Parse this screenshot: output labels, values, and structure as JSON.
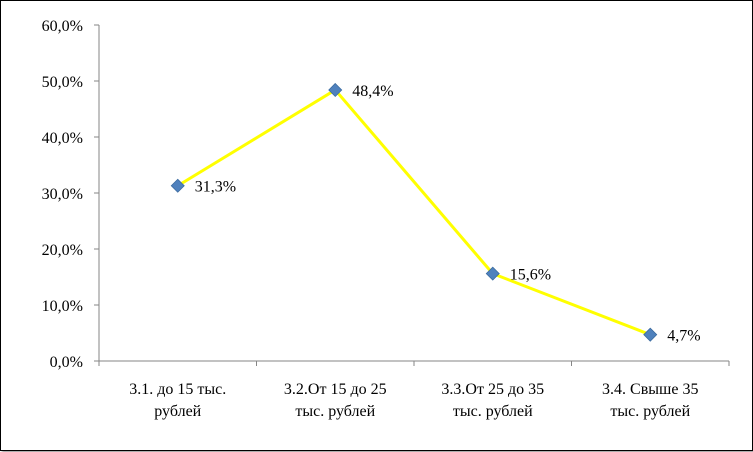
{
  "chart_data": {
    "type": "line",
    "categories": [
      [
        "3.1. до 15 тыс.",
        "рублей"
      ],
      [
        "3.2.От 15 до 25",
        "тыс. рублей"
      ],
      [
        "3.3.От 25 до 35",
        "тыс. рублей"
      ],
      [
        "3.4. Свыше 35",
        "тыс. рублей"
      ]
    ],
    "series": [
      {
        "values": [
          31.3,
          48.4,
          15.6,
          4.7
        ],
        "labels": [
          "31,3%",
          "48,4%",
          "15,6%",
          "4,7%"
        ],
        "line_color": "#FFFF00",
        "marker_color": "#4F81BD",
        "marker": "diamond"
      }
    ],
    "ylim": [
      0,
      60
    ],
    "yticks": [
      0,
      10,
      20,
      30,
      40,
      50,
      60
    ],
    "ytick_labels": [
      "0,0%",
      "10,0%",
      "20,0%",
      "30,0%",
      "40,0%",
      "50,0%",
      "60,0%"
    ],
    "grid": false,
    "legend": "none",
    "title": "",
    "xlabel": "",
    "ylabel": ""
  }
}
